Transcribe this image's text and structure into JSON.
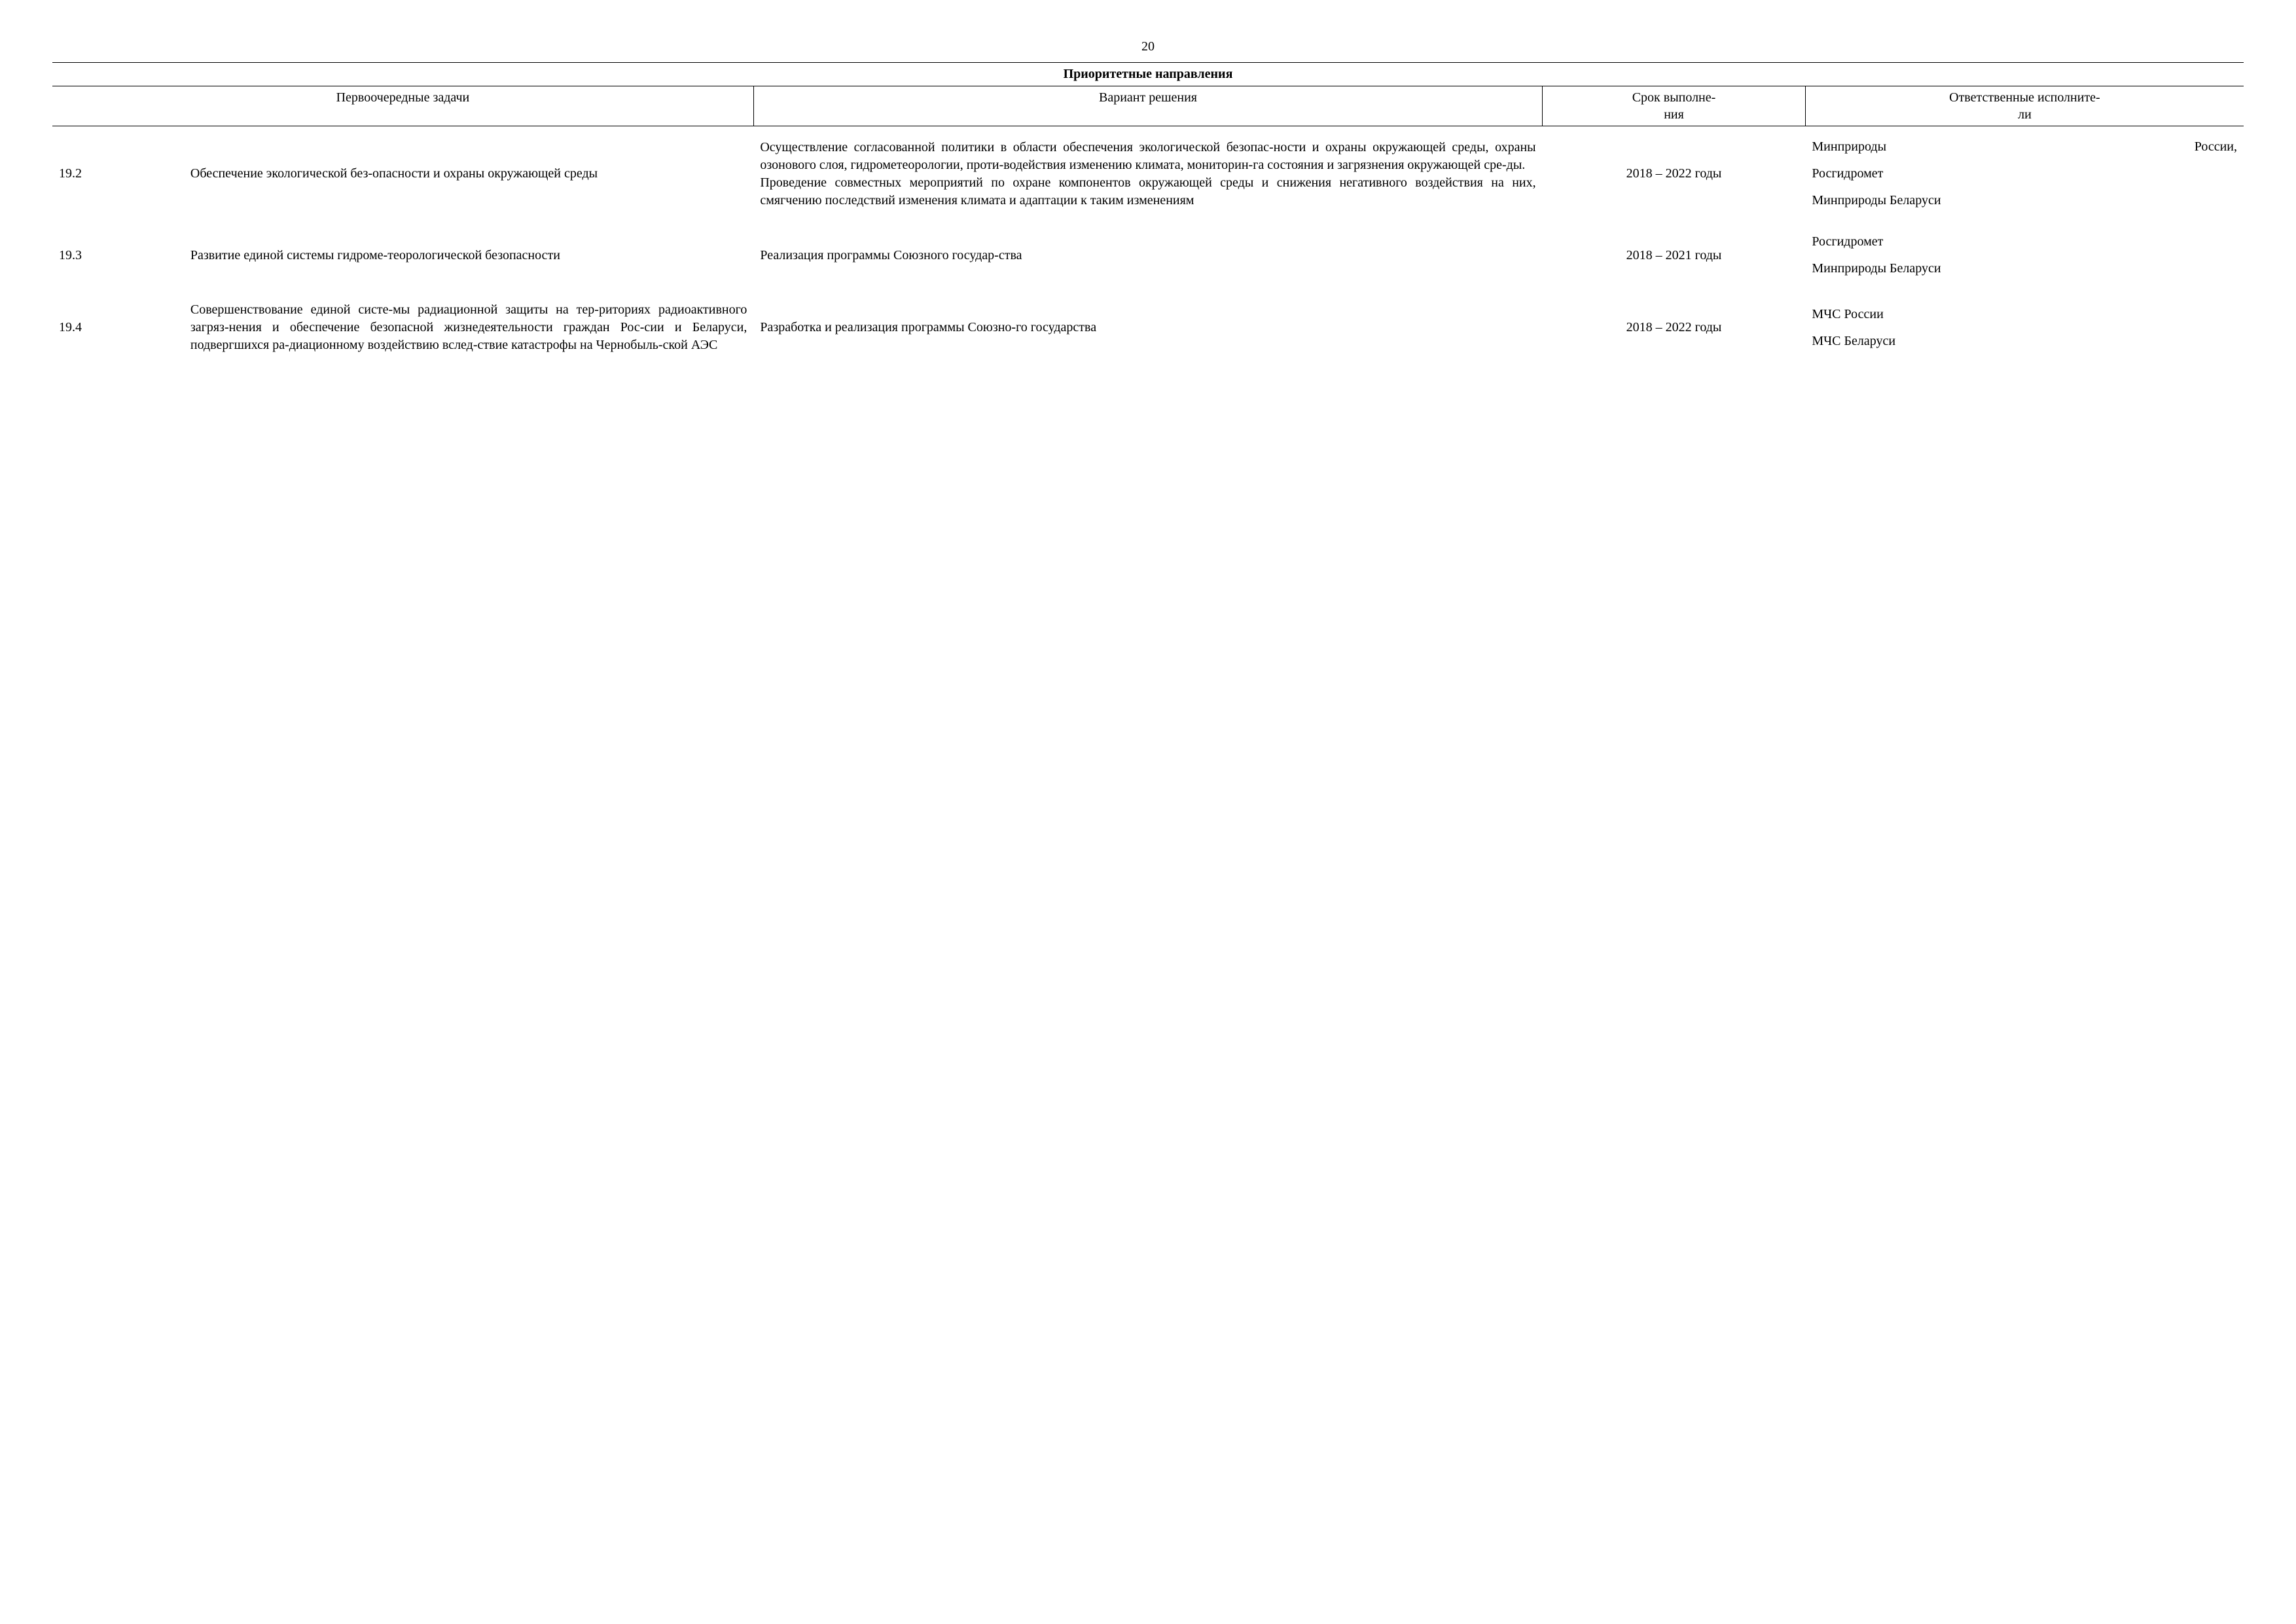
{
  "page_number": "20",
  "table": {
    "title": "Приоритетные направления",
    "headers": {
      "tasks": "Первоочередные задачи",
      "solution": "Вариант решения",
      "term": "Срок выполне-\nния",
      "executors": "Ответственные исполните-\nли"
    },
    "rows": [
      {
        "num": "19.2",
        "task": "Обеспечение экологической без-опасности и охраны окружающей среды",
        "solution": "Осуществление согласованной политики в области обеспечения экологической безопас-ности и охраны окружающей среды, охраны озонового слоя, гидрометеорологии, проти-водействия изменению климата, мониторин-га состояния и загрязнения окружающей сре-ды.\nПроведение совместных мероприятий по охране компонентов окружающей среды и снижения негативного воздействия на них, смягчению последствий изменения климата и адаптации к таким изменениям",
        "term": "2018 – 2022 годы",
        "exec1a": "Минприроды",
        "exec1b": "России,",
        "exec2": "Росгидромет",
        "exec3": "Минприроды Беларуси"
      },
      {
        "num": "19.3",
        "task": "Развитие единой системы гидроме-теорологической безопасности",
        "solution": "Реализация программы Союзного государ-ства",
        "term": "2018 – 2021 годы",
        "exec1": "Росгидромет",
        "exec2": "Минприроды Беларуси"
      },
      {
        "num": "19.4",
        "task": "Совершенствование единой систе-мы радиационной защиты на тер-риториях радиоактивного загряз-нения и обеспечение безопасной жизнедеятельности граждан Рос-сии и Беларуси, подвергшихся ра-диационному воздействию вслед-ствие катастрофы на Чернобыль-ской АЭС",
        "solution": "Разработка и реализация программы Союзно-го государства",
        "term": "2018 – 2022 годы",
        "exec1": "МЧС России",
        "exec2": "МЧС Беларуси"
      }
    ]
  }
}
